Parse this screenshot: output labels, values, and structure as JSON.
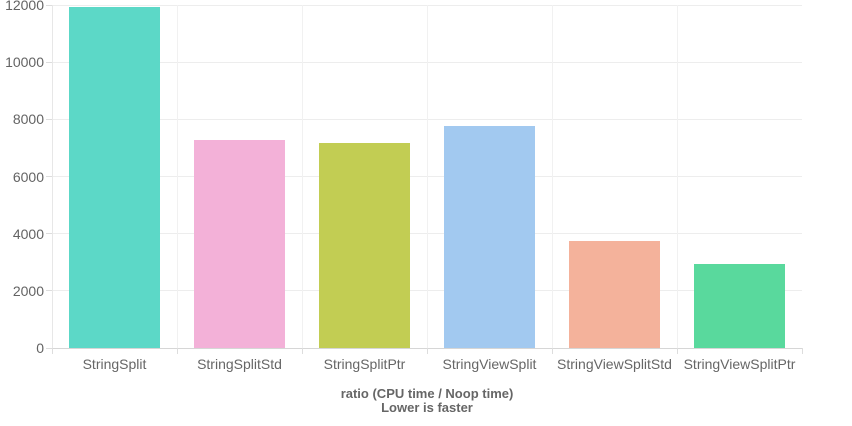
{
  "chart_data": {
    "type": "bar",
    "categories": [
      "StringSplit",
      "StringSplitStd",
      "StringSplitPtr",
      "StringViewSplit",
      "StringViewSplitStd",
      "StringViewSplitPtr"
    ],
    "values": [
      11930,
      7280,
      7170,
      7770,
      3740,
      2940
    ],
    "colors": [
      "#5cd8c7",
      "#f3b1d8",
      "#c2cd53",
      "#a2c9f0",
      "#f4b29b",
      "#59d99d"
    ],
    "title": "",
    "xlabel": "ratio (CPU time / Noop time)",
    "xlabel_line2": "Lower is faster",
    "ylabel": "",
    "ylim": [
      0,
      12000
    ],
    "yticks": [
      0,
      2000,
      4000,
      6000,
      8000,
      10000,
      12000
    ],
    "grid": true,
    "legend": false,
    "style": {
      "background": "#ffffff",
      "grid_color": "#ededed",
      "axis_color": "#d6d6d6",
      "tick_label_color": "#636363",
      "category_label_color": "#666666",
      "axis_title_color": "#666666"
    }
  }
}
